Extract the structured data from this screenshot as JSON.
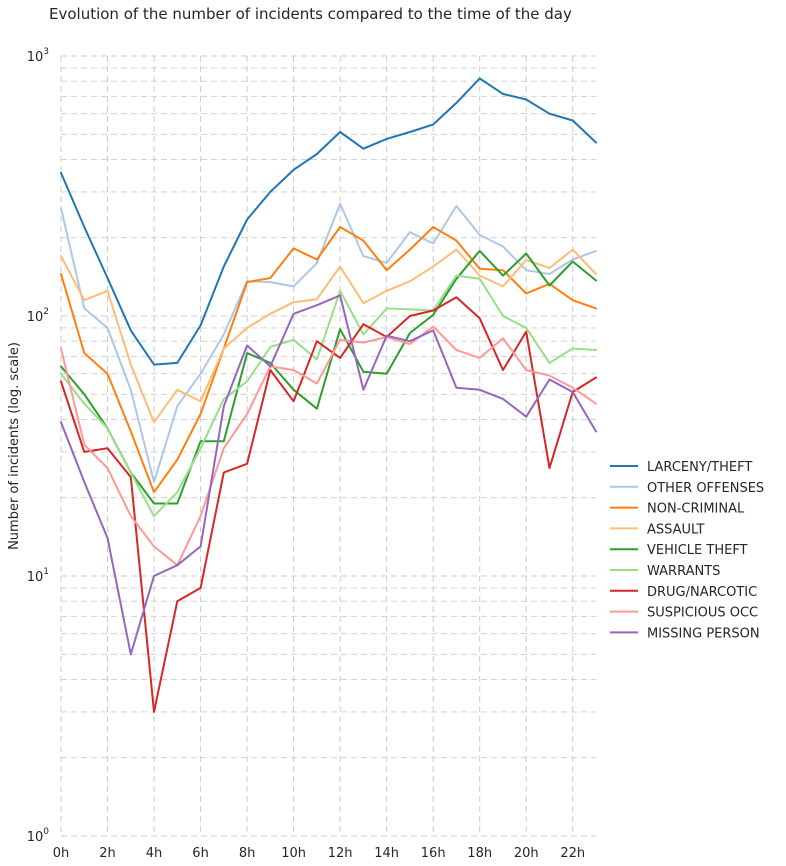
{
  "chart_data": {
    "type": "line",
    "title": "Evolution of the number of incidents compared to the time of the day",
    "xlabel": "",
    "ylabel": "Number of incidents (log. scale)",
    "yscale": "log",
    "ylim": [
      1,
      1000
    ],
    "xlim": [
      0,
      23
    ],
    "grid": true,
    "legend_position": "right",
    "x": [
      0,
      1,
      2,
      3,
      4,
      5,
      6,
      7,
      8,
      9,
      10,
      11,
      12,
      13,
      14,
      15,
      16,
      17,
      18,
      19,
      20,
      21,
      22,
      23
    ],
    "x_tick_labels": [
      "0h",
      "2h",
      "4h",
      "6h",
      "8h",
      "10h",
      "12h",
      "14h",
      "16h",
      "18h",
      "20h",
      "22h"
    ],
    "y_tick_labels": [
      {
        "base": "10",
        "exp": "0"
      },
      {
        "base": "10",
        "exp": "1"
      },
      {
        "base": "10",
        "exp": "2"
      },
      {
        "base": "10",
        "exp": "3"
      }
    ],
    "series": [
      {
        "name": "LARCENY/THEFT",
        "color": "#1f77b4",
        "values": [
          355,
          220,
          140,
          88,
          65,
          66,
          92,
          155,
          235,
          300,
          365,
          420,
          510,
          440,
          480,
          510,
          545,
          660,
          820,
          715,
          680,
          600,
          565,
          465
        ]
      },
      {
        "name": "OTHER OFFENSES",
        "color": "#aec7e8",
        "values": [
          260,
          107,
          90,
          52,
          23,
          45,
          60,
          85,
          136,
          135,
          130,
          160,
          270,
          170,
          160,
          210,
          190,
          265,
          205,
          185,
          150,
          145,
          165,
          178
        ]
      },
      {
        "name": "NON-CRIMINAL",
        "color": "#ff7f0e",
        "values": [
          145,
          72,
          60,
          36,
          21,
          28,
          42,
          75,
          135,
          140,
          182,
          165,
          220,
          195,
          150,
          180,
          220,
          195,
          152,
          150,
          122,
          133,
          115,
          107
        ]
      },
      {
        "name": "ASSAULT",
        "color": "#ffbb78",
        "values": [
          170,
          115,
          125,
          65,
          39,
          52,
          47,
          75,
          90,
          102,
          113,
          116,
          155,
          112,
          125,
          136,
          155,
          180,
          143,
          130,
          164,
          153,
          180,
          145
        ]
      },
      {
        "name": "VEHICLE THEFT",
        "color": "#2ca02c",
        "values": [
          64,
          50,
          37,
          25,
          19,
          19,
          33,
          33,
          72,
          66,
          52,
          44,
          89,
          61,
          60,
          86,
          101,
          139,
          178,
          143,
          174,
          131,
          162,
          137
        ]
      },
      {
        "name": "WARRANTS",
        "color": "#98df8a",
        "values": [
          60,
          46,
          37,
          25,
          17,
          21,
          31,
          48,
          56,
          76,
          81,
          68,
          125,
          85,
          107,
          106,
          105,
          143,
          139,
          100,
          90,
          66,
          75,
          74
        ]
      },
      {
        "name": "DRUG/NARCOTIC",
        "color": "#d62728",
        "values": [
          56,
          30,
          31,
          24,
          3,
          8,
          9,
          25,
          27,
          62,
          47,
          80,
          69,
          93,
          83,
          100,
          105,
          118,
          98,
          62,
          87,
          26,
          51,
          58
        ]
      },
      {
        "name": "SUSPICIOUS OCC",
        "color": "#ff9896",
        "values": [
          75,
          32,
          26,
          17,
          13,
          11,
          17,
          31,
          42,
          64,
          62,
          55,
          81,
          79,
          83,
          78,
          91,
          74,
          69,
          82,
          62,
          59,
          53,
          46
        ]
      },
      {
        "name": "MISSING PERSON",
        "color": "#9467bd",
        "values": [
          39,
          23,
          14,
          5,
          10,
          11,
          13,
          45,
          77,
          64,
          102,
          110,
          120,
          52,
          84,
          80,
          88,
          53,
          52,
          48,
          41,
          57,
          51,
          36
        ]
      }
    ]
  }
}
